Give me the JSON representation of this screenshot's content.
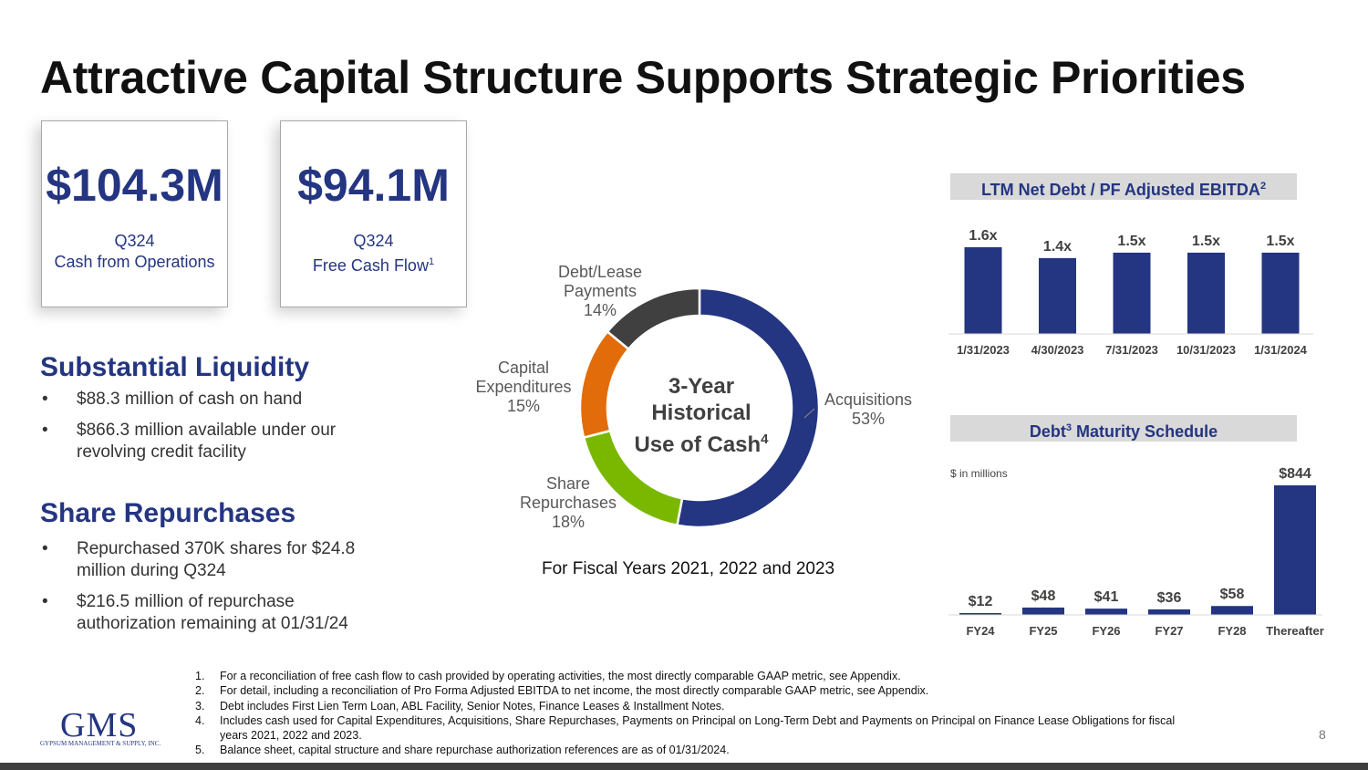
{
  "title": "Attractive Capital Structure Supports Strategic Priorities",
  "kpis": [
    {
      "value": "$104.3M",
      "line1": "Q324",
      "line2": "Cash from Operations",
      "sup": ""
    },
    {
      "value": "$94.1M",
      "line1": "Q324",
      "line2": "Free Cash Flow",
      "sup": "1"
    }
  ],
  "liquidity": {
    "heading": "Substantial Liquidity",
    "bullets": [
      "$88.3 million of cash on hand",
      "$866.3 million available under our revolving credit facility"
    ]
  },
  "repurchases": {
    "heading": "Share Repurchases",
    "bullets": [
      "Repurchased 370K shares for $24.8 million during Q324",
      "$216.5 million of repurchase authorization remaining at 01/31/24"
    ]
  },
  "donut": {
    "center_line1": "3-Year",
    "center_line2": "Historical",
    "center_line3": "Use of Cash",
    "center_sup": "4",
    "footer": "For Fiscal Years 2021, 2022 and 2023",
    "labels": {
      "acq_1": "Acquisitions",
      "acq_2": "53%",
      "share_1": "Share",
      "share_2": "Repurchases",
      "share_3": "18%",
      "capex_1": "Capital",
      "capex_2": "Expenditures",
      "capex_3": "15%",
      "debt_1": "Debt/Lease",
      "debt_2": "Payments",
      "debt_3": "14%"
    }
  },
  "leverage": {
    "heading": "LTM Net Debt / PF Adjusted EBITDA",
    "heading_sup": "2"
  },
  "maturity": {
    "heading_pre": "Debt",
    "heading_sup": "3",
    "heading_post": " Maturity Schedule",
    "unit_note": "$ in millions"
  },
  "chart_data": [
    {
      "type": "pie",
      "categories": [
        "Acquisitions",
        "Share Repurchases",
        "Capital Expenditures",
        "Debt/Lease Payments"
      ],
      "values": [
        53,
        18,
        15,
        14
      ],
      "value_labels": [
        "53%",
        "18%",
        "15%",
        "14%"
      ],
      "colors": [
        "#243581",
        "#7ab800",
        "#e36c0a",
        "#404040"
      ]
    },
    {
      "type": "bar",
      "title": "LTM Net Debt / PF Adjusted EBITDA",
      "categories": [
        "1/31/2023",
        "4/30/2023",
        "7/31/2023",
        "10/31/2023",
        "1/31/2024"
      ],
      "values": [
        1.6,
        1.4,
        1.5,
        1.5,
        1.5
      ],
      "value_labels": [
        "1.6x",
        "1.4x",
        "1.5x",
        "1.5x",
        "1.5x"
      ],
      "ylim": [
        0,
        1.6
      ],
      "color": "#243581"
    },
    {
      "type": "bar",
      "title": "Debt Maturity Schedule",
      "categories": [
        "FY24",
        "FY25",
        "FY26",
        "FY27",
        "FY28",
        "Thereafter"
      ],
      "values": [
        12,
        48,
        41,
        36,
        58,
        844
      ],
      "value_labels": [
        "$12",
        "$48",
        "$41",
        "$36",
        "$58",
        "$844"
      ],
      "ylim": [
        0,
        844
      ],
      "color": "#243581"
    }
  ],
  "footnotes": [
    {
      "n": "1.",
      "text": "For a reconciliation of free cash flow to cash provided by operating activities, the most directly comparable GAAP metric, see Appendix."
    },
    {
      "n": "2.",
      "text": "For detail, including a reconciliation of Pro Forma Adjusted EBITDA to net income, the most directly comparable GAAP metric, see Appendix."
    },
    {
      "n": "3.",
      "text": "Debt includes First Lien Term Loan, ABL Facility, Senior Notes, Finance Leases & Installment Notes."
    },
    {
      "n": "4.",
      "text": "Includes cash used for Capital Expenditures, Acquisitions, Share Repurchases, Payments on Principal on Long-Term Debt and Payments on Principal on Finance Lease Obligations for fiscal years 2021, 2022 and 2023."
    },
    {
      "n": "5.",
      "text": "Balance sheet, capital structure and share repurchase authorization references are as of 01/31/2024."
    }
  ],
  "logo": {
    "text": "GMS",
    "tagline": "GYPSUM MANAGEMENT & SUPPLY, INC."
  },
  "page_number": "8"
}
